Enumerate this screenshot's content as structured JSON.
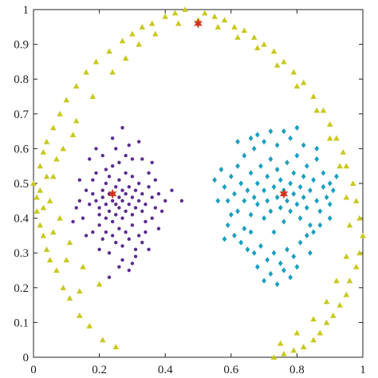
{
  "chart_data": {
    "type": "scatter",
    "title": "",
    "xlabel": "",
    "ylabel": "",
    "xlim": [
      0,
      1
    ],
    "ylim": [
      0,
      1
    ],
    "xticks": [
      "0",
      "0.2",
      "0.4",
      "0.6",
      "0.8",
      "1"
    ],
    "yticks": [
      "0",
      "0.1",
      "0.2",
      "0.3",
      "0.4",
      "0.5",
      "0.6",
      "0.7",
      "0.8",
      "0.9",
      "1"
    ],
    "grid": false,
    "legend": "none",
    "series": [
      {
        "marker": "dot",
        "color": "#5b2d8e",
        "points": [
          [
            0.19,
            0.45
          ],
          [
            0.2,
            0.41
          ],
          [
            0.2,
            0.43
          ],
          [
            0.21,
            0.46
          ],
          [
            0.21,
            0.48
          ],
          [
            0.22,
            0.4
          ],
          [
            0.22,
            0.44
          ],
          [
            0.22,
            0.5
          ],
          [
            0.23,
            0.42
          ],
          [
            0.23,
            0.47
          ],
          [
            0.23,
            0.52
          ],
          [
            0.24,
            0.39
          ],
          [
            0.24,
            0.45
          ],
          [
            0.24,
            0.55
          ],
          [
            0.25,
            0.41
          ],
          [
            0.25,
            0.44
          ],
          [
            0.25,
            0.49
          ],
          [
            0.26,
            0.43
          ],
          [
            0.26,
            0.46
          ],
          [
            0.26,
            0.51
          ],
          [
            0.27,
            0.4
          ],
          [
            0.27,
            0.45
          ],
          [
            0.27,
            0.48
          ],
          [
            0.28,
            0.42
          ],
          [
            0.28,
            0.47
          ],
          [
            0.28,
            0.53
          ],
          [
            0.29,
            0.44
          ],
          [
            0.29,
            0.49
          ],
          [
            0.3,
            0.41
          ],
          [
            0.3,
            0.46
          ],
          [
            0.3,
            0.52
          ],
          [
            0.31,
            0.43
          ],
          [
            0.31,
            0.48
          ],
          [
            0.32,
            0.45
          ],
          [
            0.32,
            0.5
          ],
          [
            0.33,
            0.42
          ],
          [
            0.33,
            0.47
          ],
          [
            0.34,
            0.44
          ],
          [
            0.35,
            0.49
          ],
          [
            0.36,
            0.46
          ],
          [
            0.18,
            0.47
          ],
          [
            0.17,
            0.44
          ],
          [
            0.2,
            0.38
          ],
          [
            0.22,
            0.36
          ],
          [
            0.24,
            0.35
          ],
          [
            0.26,
            0.37
          ],
          [
            0.28,
            0.36
          ],
          [
            0.3,
            0.38
          ],
          [
            0.32,
            0.35
          ],
          [
            0.34,
            0.39
          ],
          [
            0.25,
            0.33
          ],
          [
            0.27,
            0.32
          ],
          [
            0.29,
            0.34
          ],
          [
            0.31,
            0.31
          ],
          [
            0.33,
            0.33
          ],
          [
            0.22,
            0.54
          ],
          [
            0.26,
            0.56
          ],
          [
            0.28,
            0.58
          ],
          [
            0.3,
            0.57
          ],
          [
            0.25,
            0.6
          ],
          [
            0.19,
            0.53
          ],
          [
            0.21,
            0.34
          ],
          [
            0.36,
            0.4
          ],
          [
            0.37,
            0.43
          ],
          [
            0.38,
            0.47
          ],
          [
            0.35,
            0.53
          ],
          [
            0.15,
            0.4
          ],
          [
            0.16,
            0.48
          ],
          [
            0.14,
            0.45
          ],
          [
            0.18,
            0.36
          ],
          [
            0.23,
            0.3
          ],
          [
            0.27,
            0.28
          ],
          [
            0.31,
            0.29
          ],
          [
            0.35,
            0.31
          ],
          [
            0.38,
            0.37
          ],
          [
            0.39,
            0.42
          ],
          [
            0.4,
            0.45
          ],
          [
            0.24,
            0.63
          ],
          [
            0.27,
            0.66
          ],
          [
            0.32,
            0.62
          ],
          [
            0.29,
            0.61
          ],
          [
            0.21,
            0.58
          ],
          [
            0.18,
            0.51
          ],
          [
            0.13,
            0.43
          ],
          [
            0.16,
            0.35
          ],
          [
            0.2,
            0.31
          ],
          [
            0.26,
            0.26
          ],
          [
            0.3,
            0.27
          ],
          [
            0.34,
            0.36
          ],
          [
            0.37,
            0.51
          ],
          [
            0.36,
            0.56
          ],
          [
            0.33,
            0.57
          ],
          [
            0.23,
            0.23
          ],
          [
            0.29,
            0.25
          ],
          [
            0.19,
            0.6
          ],
          [
            0.17,
            0.57
          ],
          [
            0.45,
            0.45
          ],
          [
            0.42,
            0.48
          ],
          [
            0.14,
            0.51
          ],
          [
            0.12,
            0.39
          ]
        ]
      },
      {
        "marker": "diamond",
        "color": "#1a9fc0",
        "points": [
          [
            0.58,
            0.49
          ],
          [
            0.59,
            0.45
          ],
          [
            0.6,
            0.52
          ],
          [
            0.61,
            0.47
          ],
          [
            0.62,
            0.42
          ],
          [
            0.62,
            0.55
          ],
          [
            0.63,
            0.5
          ],
          [
            0.64,
            0.45
          ],
          [
            0.64,
            0.58
          ],
          [
            0.65,
            0.48
          ],
          [
            0.66,
            0.53
          ],
          [
            0.66,
            0.41
          ],
          [
            0.67,
            0.46
          ],
          [
            0.67,
            0.6
          ],
          [
            0.68,
            0.5
          ],
          [
            0.68,
            0.44
          ],
          [
            0.69,
            0.55
          ],
          [
            0.7,
            0.48
          ],
          [
            0.7,
            0.4
          ],
          [
            0.71,
            0.52
          ],
          [
            0.71,
            0.45
          ],
          [
            0.72,
            0.57
          ],
          [
            0.72,
            0.42
          ],
          [
            0.73,
            0.49
          ],
          [
            0.73,
            0.36
          ],
          [
            0.74,
            0.54
          ],
          [
            0.74,
            0.46
          ],
          [
            0.75,
            0.43
          ],
          [
            0.75,
            0.51
          ],
          [
            0.76,
            0.48
          ],
          [
            0.76,
            0.39
          ],
          [
            0.77,
            0.56
          ],
          [
            0.77,
            0.45
          ],
          [
            0.78,
            0.5
          ],
          [
            0.78,
            0.42
          ],
          [
            0.79,
            0.53
          ],
          [
            0.79,
            0.47
          ],
          [
            0.8,
            0.44
          ],
          [
            0.8,
            0.58
          ],
          [
            0.81,
            0.49
          ],
          [
            0.81,
            0.4
          ],
          [
            0.82,
            0.52
          ],
          [
            0.82,
            0.46
          ],
          [
            0.83,
            0.55
          ],
          [
            0.83,
            0.43
          ],
          [
            0.84,
            0.48
          ],
          [
            0.84,
            0.38
          ],
          [
            0.85,
            0.51
          ],
          [
            0.86,
            0.45
          ],
          [
            0.86,
            0.57
          ],
          [
            0.87,
            0.42
          ],
          [
            0.88,
            0.49
          ],
          [
            0.88,
            0.53
          ],
          [
            0.89,
            0.46
          ],
          [
            0.9,
            0.44
          ],
          [
            0.9,
            0.5
          ],
          [
            0.57,
            0.54
          ],
          [
            0.56,
            0.45
          ],
          [
            0.59,
            0.38
          ],
          [
            0.61,
            0.35
          ],
          [
            0.63,
            0.33
          ],
          [
            0.65,
            0.31
          ],
          [
            0.67,
            0.3
          ],
          [
            0.69,
            0.32
          ],
          [
            0.71,
            0.28
          ],
          [
            0.73,
            0.3
          ],
          [
            0.75,
            0.27
          ],
          [
            0.77,
            0.31
          ],
          [
            0.79,
            0.29
          ],
          [
            0.81,
            0.33
          ],
          [
            0.83,
            0.35
          ],
          [
            0.85,
            0.36
          ],
          [
            0.87,
            0.38
          ],
          [
            0.68,
            0.26
          ],
          [
            0.72,
            0.24
          ],
          [
            0.76,
            0.25
          ],
          [
            0.8,
            0.26
          ],
          [
            0.84,
            0.3
          ],
          [
            0.7,
            0.22
          ],
          [
            0.74,
            0.21
          ],
          [
            0.78,
            0.23
          ],
          [
            0.64,
            0.37
          ],
          [
            0.66,
            0.36
          ],
          [
            0.6,
            0.41
          ],
          [
            0.62,
            0.62
          ],
          [
            0.66,
            0.63
          ],
          [
            0.7,
            0.62
          ],
          [
            0.74,
            0.61
          ],
          [
            0.78,
            0.63
          ],
          [
            0.82,
            0.61
          ],
          [
            0.86,
            0.6
          ],
          [
            0.76,
            0.65
          ],
          [
            0.8,
            0.66
          ],
          [
            0.72,
            0.65
          ],
          [
            0.68,
            0.64
          ],
          [
            0.91,
            0.48
          ],
          [
            0.92,
            0.52
          ],
          [
            0.55,
            0.51
          ],
          [
            0.9,
            0.4
          ],
          [
            0.58,
            0.34
          ]
        ]
      },
      {
        "marker": "triangle",
        "color": "#c9c81e",
        "points": [
          [
            0.0,
            0.5
          ],
          [
            0.01,
            0.46
          ],
          [
            0.01,
            0.42
          ],
          [
            0.02,
            0.38
          ],
          [
            0.02,
            0.55
          ],
          [
            0.03,
            0.35
          ],
          [
            0.03,
            0.59
          ],
          [
            0.04,
            0.31
          ],
          [
            0.04,
            0.62
          ],
          [
            0.05,
            0.28
          ],
          [
            0.06,
            0.66
          ],
          [
            0.07,
            0.25
          ],
          [
            0.08,
            0.7
          ],
          [
            0.09,
            0.2
          ],
          [
            0.1,
            0.74
          ],
          [
            0.11,
            0.17
          ],
          [
            0.13,
            0.78
          ],
          [
            0.14,
            0.12
          ],
          [
            0.16,
            0.82
          ],
          [
            0.17,
            0.09
          ],
          [
            0.19,
            0.85
          ],
          [
            0.21,
            0.05
          ],
          [
            0.23,
            0.88
          ],
          [
            0.25,
            0.03
          ],
          [
            0.27,
            0.91
          ],
          [
            0.3,
            0.93
          ],
          [
            0.33,
            0.95
          ],
          [
            0.36,
            0.96
          ],
          [
            0.4,
            0.98
          ],
          [
            0.43,
            0.99
          ],
          [
            0.46,
            1.0
          ],
          [
            0.52,
            0.99
          ],
          [
            0.55,
            0.98
          ],
          [
            0.58,
            0.97
          ],
          [
            0.61,
            0.95
          ],
          [
            0.64,
            0.94
          ],
          [
            0.67,
            0.92
          ],
          [
            0.7,
            0.9
          ],
          [
            0.73,
            0.88
          ],
          [
            0.76,
            0.85
          ],
          [
            0.79,
            0.82
          ],
          [
            0.82,
            0.79
          ],
          [
            0.85,
            0.75
          ],
          [
            0.88,
            0.71
          ],
          [
            0.9,
            0.67
          ],
          [
            0.92,
            0.63
          ],
          [
            0.94,
            0.59
          ],
          [
            0.95,
            0.55
          ],
          [
            0.97,
            0.5
          ],
          [
            0.98,
            0.45
          ],
          [
            0.99,
            0.4
          ],
          [
            1.0,
            0.35
          ],
          [
            0.99,
            0.3
          ],
          [
            0.98,
            0.26
          ],
          [
            0.96,
            0.22
          ],
          [
            0.95,
            0.18
          ],
          [
            0.93,
            0.15
          ],
          [
            0.91,
            0.12
          ],
          [
            0.89,
            0.1
          ],
          [
            0.87,
            0.07
          ],
          [
            0.85,
            0.05
          ],
          [
            0.82,
            0.03
          ],
          [
            0.79,
            0.02
          ],
          [
            0.76,
            0.01
          ],
          [
            0.73,
            0.0
          ],
          [
            0.05,
            0.45
          ],
          [
            0.06,
            0.52
          ],
          [
            0.08,
            0.4
          ],
          [
            0.09,
            0.6
          ],
          [
            0.11,
            0.33
          ],
          [
            0.13,
            0.68
          ],
          [
            0.15,
            0.26
          ],
          [
            0.18,
            0.75
          ],
          [
            0.2,
            0.21
          ],
          [
            0.24,
            0.82
          ],
          [
            0.28,
            0.86
          ],
          [
            0.32,
            0.9
          ],
          [
            0.37,
            0.93
          ],
          [
            0.44,
            0.96
          ],
          [
            0.5,
            0.97
          ],
          [
            0.56,
            0.95
          ],
          [
            0.62,
            0.92
          ],
          [
            0.68,
            0.89
          ],
          [
            0.74,
            0.84
          ],
          [
            0.8,
            0.78
          ],
          [
            0.86,
            0.71
          ],
          [
            0.9,
            0.63
          ],
          [
            0.93,
            0.55
          ],
          [
            0.95,
            0.46
          ],
          [
            0.96,
            0.38
          ],
          [
            0.95,
            0.29
          ],
          [
            0.92,
            0.22
          ],
          [
            0.89,
            0.16
          ],
          [
            0.85,
            0.11
          ],
          [
            0.8,
            0.07
          ],
          [
            0.75,
            0.04
          ],
          [
            0.02,
            0.48
          ],
          [
            0.03,
            0.43
          ],
          [
            0.04,
            0.52
          ],
          [
            0.06,
            0.36
          ],
          [
            0.07,
            0.57
          ],
          [
            0.1,
            0.28
          ],
          [
            0.12,
            0.64
          ],
          [
            0.14,
            0.19
          ]
        ]
      },
      {
        "marker": "star",
        "color": "#d0341c",
        "points": [
          [
            0.24,
            0.47
          ],
          [
            0.76,
            0.47
          ],
          [
            0.5,
            0.96
          ]
        ]
      }
    ]
  }
}
